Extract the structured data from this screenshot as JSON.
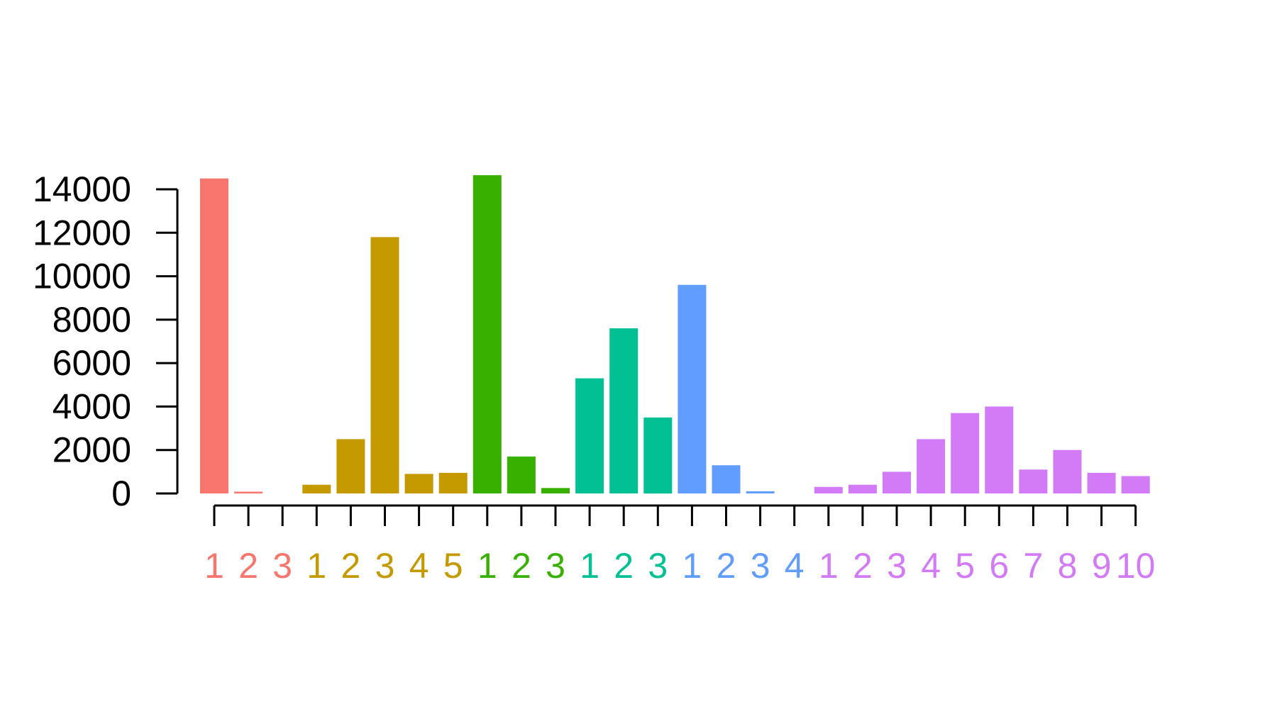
{
  "chart_data": {
    "type": "bar",
    "title": "",
    "xlabel": "",
    "ylabel": "",
    "ylim": [
      0,
      14500
    ],
    "y_ticks": [
      0,
      2000,
      4000,
      6000,
      8000,
      10000,
      12000,
      14000
    ],
    "y_tick_labels": [
      "0",
      "2000",
      "4000",
      "6000",
      "8000",
      "10000",
      "12000",
      "14000"
    ],
    "grid": false,
    "legend": "none",
    "groups": [
      {
        "color": "#F8766D",
        "categories": [
          "1",
          "2",
          "3"
        ],
        "values": [
          14500,
          80,
          0
        ]
      },
      {
        "color": "#C49A00",
        "categories": [
          "1",
          "2",
          "3",
          "4",
          "5"
        ],
        "values": [
          400,
          2500,
          11800,
          900,
          950
        ]
      },
      {
        "color": "#38B000",
        "categories": [
          "1",
          "2",
          "3"
        ],
        "values": [
          14650,
          1700,
          250
        ]
      },
      {
        "color": "#00C094",
        "categories": [
          "1",
          "2",
          "3"
        ],
        "values": [
          5300,
          7600,
          3500
        ]
      },
      {
        "color": "#619CFF",
        "categories": [
          "1",
          "2",
          "3",
          "4"
        ],
        "values": [
          9600,
          1300,
          100,
          0
        ]
      },
      {
        "color": "#D37AF7",
        "categories": [
          "1",
          "2",
          "3",
          "4",
          "5",
          "6",
          "7",
          "8",
          "9",
          "10"
        ],
        "values": [
          300,
          400,
          1000,
          2500,
          3700,
          4000,
          1100,
          2000,
          950,
          800
        ]
      }
    ]
  }
}
